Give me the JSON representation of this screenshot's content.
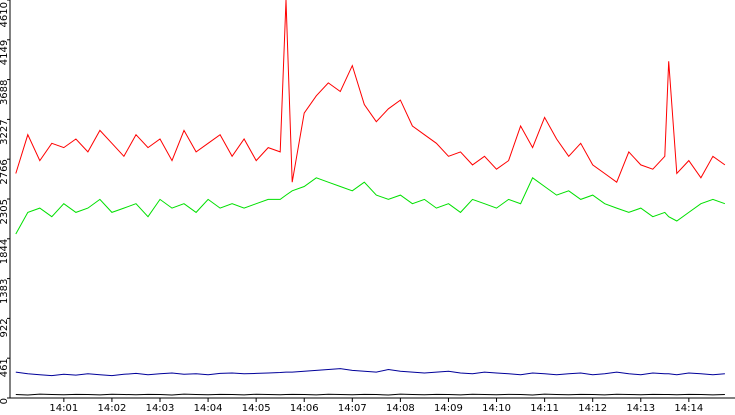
{
  "chart_data": {
    "type": "line",
    "x": [
      0,
      0.25,
      0.5,
      0.75,
      1,
      1.25,
      1.5,
      1.75,
      2,
      2.25,
      2.5,
      2.75,
      3,
      3.25,
      3.5,
      3.75,
      4,
      4.25,
      4.5,
      4.75,
      5,
      5.25,
      5.5,
      5.62,
      5.75,
      6,
      6.25,
      6.5,
      6.75,
      7,
      7.25,
      7.5,
      7.75,
      8,
      8.25,
      8.5,
      8.75,
      9,
      9.25,
      9.5,
      9.75,
      10,
      10.25,
      10.5,
      10.75,
      11,
      11.25,
      11.5,
      11.75,
      12,
      12.25,
      12.5,
      12.75,
      13,
      13.25,
      13.5,
      13.58,
      13.75,
      14,
      14.25,
      14.5,
      14.75
    ],
    "series": [
      {
        "color": "#ff0000",
        "values": [
          2600,
          3050,
          2750,
          2950,
          2900,
          3000,
          2850,
          3100,
          2950,
          2800,
          3050,
          2900,
          3000,
          2750,
          3100,
          2850,
          2950,
          3050,
          2800,
          3000,
          2750,
          2900,
          2850,
          4610,
          2500,
          3300,
          3500,
          3650,
          3550,
          3850,
          3400,
          3200,
          3350,
          3450,
          3150,
          3050,
          2950,
          2800,
          2850,
          2700,
          2800,
          2650,
          2750,
          3150,
          2900,
          3250,
          3000,
          2800,
          2950,
          2700,
          2600,
          2500,
          2850,
          2700,
          2650,
          2800,
          3900,
          2600,
          2750,
          2550,
          2800,
          2700
        ]
      },
      {
        "color": "#00e000",
        "values": [
          1900,
          2150,
          2200,
          2100,
          2250,
          2150,
          2200,
          2300,
          2150,
          2200,
          2250,
          2100,
          2300,
          2200,
          2250,
          2150,
          2300,
          2200,
          2250,
          2200,
          2250,
          2300,
          2300,
          2350,
          2400,
          2450,
          2550,
          2500,
          2450,
          2400,
          2500,
          2350,
          2300,
          2350,
          2250,
          2300,
          2200,
          2250,
          2150,
          2300,
          2250,
          2200,
          2300,
          2250,
          2550,
          2450,
          2350,
          2400,
          2300,
          2350,
          2250,
          2200,
          2150,
          2200,
          2100,
          2150,
          2100,
          2050,
          2150,
          2250,
          2300,
          2250
        ]
      },
      {
        "color": "#000099",
        "values": [
          300,
          280,
          270,
          260,
          275,
          265,
          280,
          270,
          260,
          275,
          285,
          270,
          280,
          290,
          275,
          280,
          270,
          285,
          290,
          280,
          285,
          290,
          295,
          300,
          300,
          310,
          320,
          330,
          340,
          320,
          310,
          300,
          330,
          310,
          300,
          290,
          300,
          310,
          290,
          280,
          300,
          290,
          280,
          270,
          290,
          280,
          270,
          280,
          290,
          270,
          280,
          300,
          280,
          270,
          290,
          280,
          280,
          270,
          290,
          280,
          270,
          280
        ]
      },
      {
        "color": "#000000",
        "values": [
          40,
          35,
          45,
          40,
          38,
          42,
          40,
          36,
          44,
          40,
          38,
          42,
          40,
          35,
          45,
          40,
          38,
          42,
          40,
          36,
          44,
          40,
          38,
          40,
          42,
          40,
          36,
          44,
          40,
          38,
          42,
          40,
          35,
          45,
          40,
          38,
          42,
          40,
          36,
          44,
          40,
          38,
          42,
          40,
          35,
          45,
          40,
          38,
          42,
          40,
          36,
          44,
          40,
          38,
          42,
          40,
          40,
          38,
          42,
          40,
          36,
          40
        ]
      }
    ],
    "xlim": [
      -0.12,
      14.96
    ],
    "xticks": [
      {
        "value": 1,
        "label": "14:01"
      },
      {
        "value": 2,
        "label": "14:02"
      },
      {
        "value": 3,
        "label": "14:03"
      },
      {
        "value": 4,
        "label": "14:04"
      },
      {
        "value": 5,
        "label": "14:05"
      },
      {
        "value": 6,
        "label": "14:06"
      },
      {
        "value": 7,
        "label": "14:07"
      },
      {
        "value": 8,
        "label": "14:08"
      },
      {
        "value": 9,
        "label": "14:09"
      },
      {
        "value": 10,
        "label": "14:10"
      },
      {
        "value": 11,
        "label": "14:11"
      },
      {
        "value": 12,
        "label": "14:12"
      },
      {
        "value": 13,
        "label": "14:13"
      },
      {
        "value": 14,
        "label": "14:14"
      }
    ],
    "ylim": [
      0,
      4610
    ],
    "yticks": [
      0,
      461,
      922,
      1383,
      1844,
      2305,
      2766,
      3227,
      3688,
      4149,
      4610
    ],
    "grid": false
  }
}
